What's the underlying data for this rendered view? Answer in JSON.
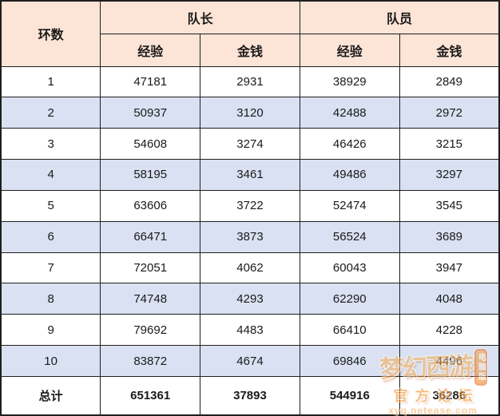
{
  "colors": {
    "header_bg": "#FCE4D6",
    "stripe_bg": "#D9E1F2",
    "border": "#1F1F1F",
    "text": "#1A1A1A",
    "watermark_orange": "#EF8B1F"
  },
  "table": {
    "ring_header": "环数",
    "groups": [
      {
        "label": "队长"
      },
      {
        "label": "队员"
      }
    ],
    "sub_headers": [
      "经验",
      "金钱",
      "经验",
      "金钱"
    ],
    "rows": [
      {
        "ring": "1",
        "cells": [
          "47181",
          "2931",
          "38929",
          "2849"
        ]
      },
      {
        "ring": "2",
        "cells": [
          "50937",
          "3120",
          "42488",
          "2972"
        ]
      },
      {
        "ring": "3",
        "cells": [
          "54608",
          "3274",
          "46426",
          "3215"
        ]
      },
      {
        "ring": "4",
        "cells": [
          "58195",
          "3461",
          "49486",
          "3297"
        ]
      },
      {
        "ring": "5",
        "cells": [
          "63606",
          "3722",
          "52474",
          "3545"
        ]
      },
      {
        "ring": "6",
        "cells": [
          "66471",
          "3873",
          "56524",
          "3689"
        ]
      },
      {
        "ring": "7",
        "cells": [
          "72051",
          "4062",
          "60043",
          "3947"
        ]
      },
      {
        "ring": "8",
        "cells": [
          "74748",
          "4293",
          "62290",
          "4048"
        ]
      },
      {
        "ring": "9",
        "cells": [
          "79692",
          "4483",
          "66410",
          "4228"
        ]
      },
      {
        "ring": "10",
        "cells": [
          "83872",
          "4674",
          "69846",
          "4496"
        ]
      },
      {
        "ring": "总计",
        "cells": [
          "651361",
          "37893",
          "544916",
          "36286"
        ],
        "bold": true
      }
    ]
  },
  "watermark": {
    "logo": "梦幻西游",
    "badge": "电脑版",
    "forum": "官方论坛",
    "url": "xyq.netease.com"
  }
}
